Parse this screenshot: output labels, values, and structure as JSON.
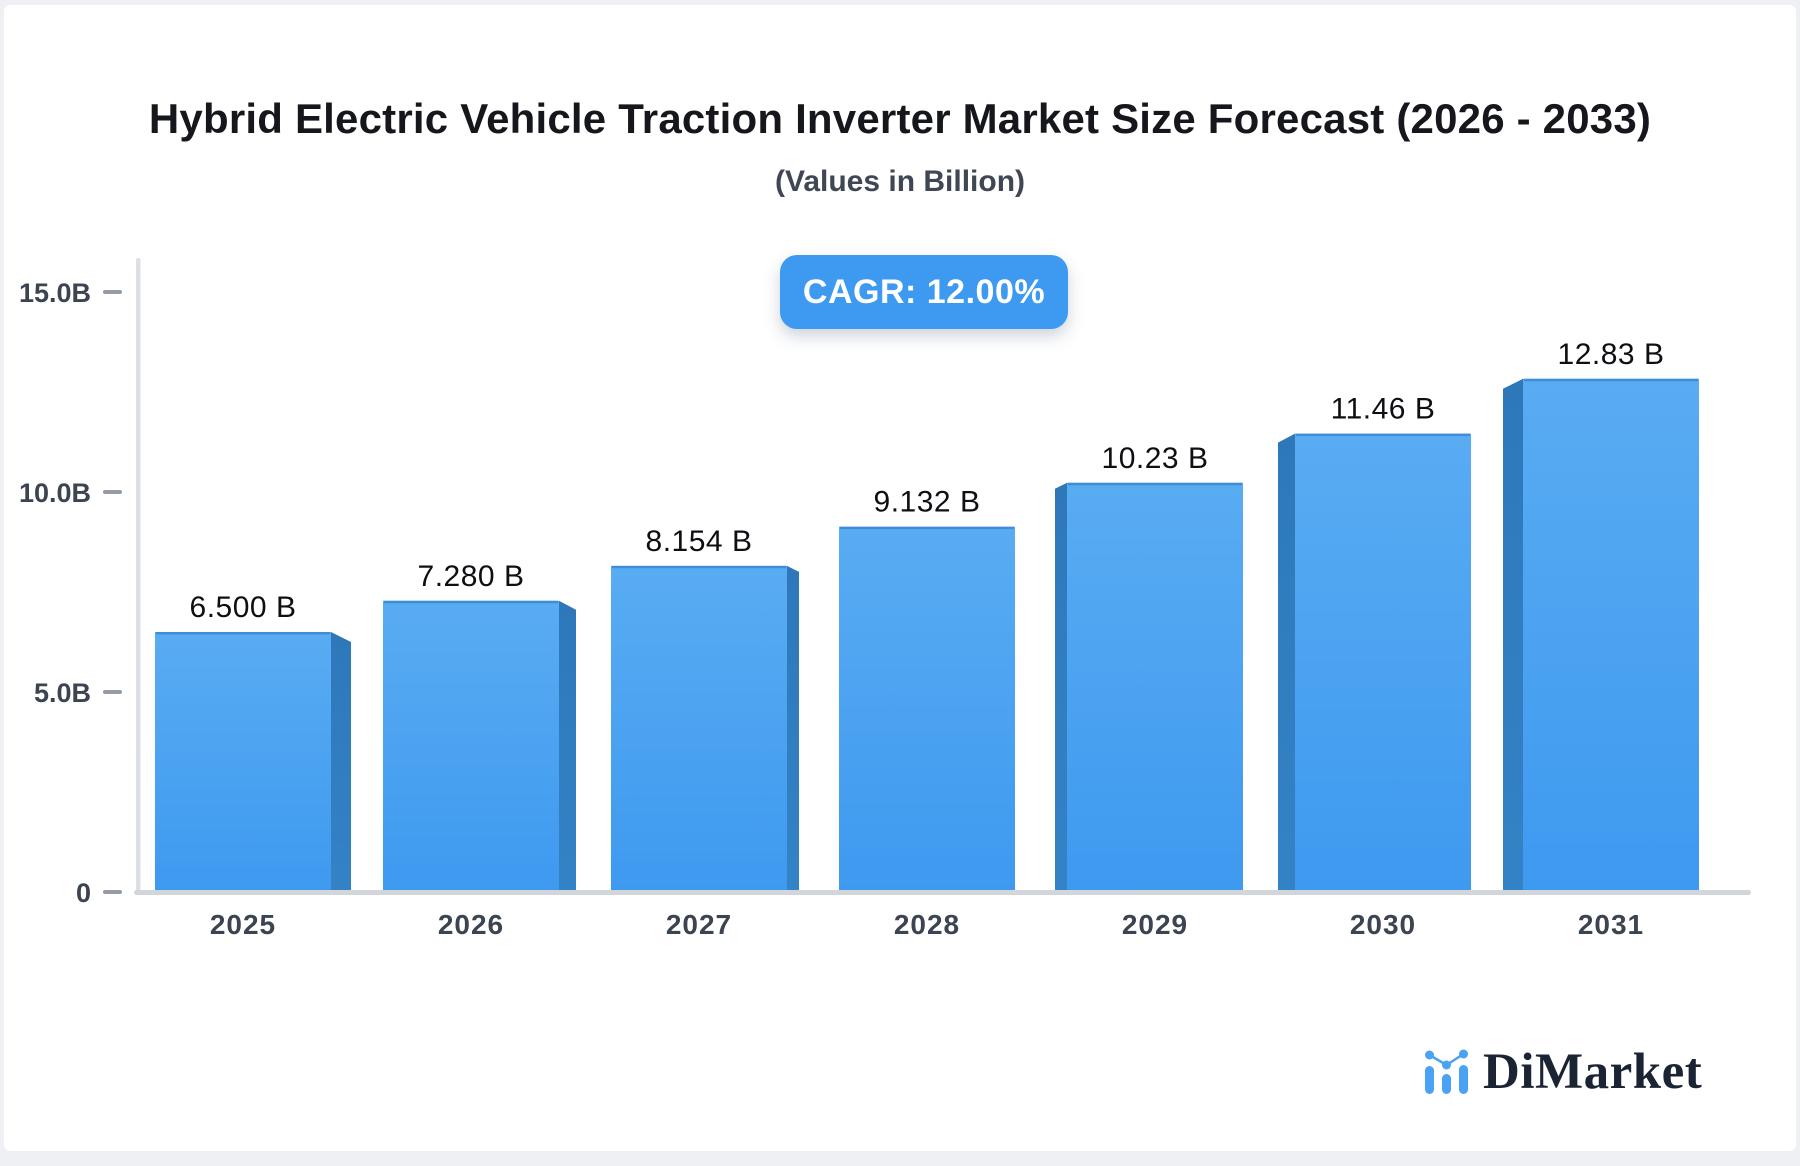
{
  "header": {
    "title": "Hybrid Electric Vehicle Traction Inverter Market Size Forecast (2026 - 2033)",
    "subtitle": "(Values in Billion)",
    "cagr_badge": "CAGR: 12.00%"
  },
  "footer": {
    "brand": "DiMarket"
  },
  "chart_data": {
    "type": "bar",
    "title": "Hybrid Electric Vehicle Traction Inverter Market Size Forecast (2026 - 2033)",
    "subtitle": "(Values in Billion)",
    "categories": [
      "2025",
      "2026",
      "2027",
      "2028",
      "2029",
      "2030",
      "2031"
    ],
    "values": [
      6.5,
      7.28,
      8.154,
      9.132,
      10.23,
      11.46,
      12.83
    ],
    "bar_labels": [
      "6.500 B",
      "7.280 B",
      "8.154 B",
      "9.132 B",
      "10.23 B",
      "11.46 B",
      "12.83 B"
    ],
    "cagr_text": "CAGR: 12.00%",
    "y_ticks": [
      {
        "value": 0,
        "label": "0"
      },
      {
        "value": 5,
        "label": "5.0B"
      },
      {
        "value": 10,
        "label": "10.0B"
      },
      {
        "value": 15,
        "label": "15.0B"
      }
    ],
    "ylim": [
      0,
      15
    ],
    "grid": false,
    "legend": "none",
    "colors": {
      "bar_face_top": "#59acf2",
      "bar_face_bottom": "#3e99f0",
      "bar_top_edge": "#3d87d2",
      "bar_side": "#2e78ba",
      "badge_bg": "#3e9af0",
      "axis_line": "#dcdfe5",
      "baseline": "#d2d6db",
      "tick_dash": "#969ca6",
      "axis_label": "#3c4452",
      "value_label": "#0d0f12",
      "logo_blue": "#4aa2f5",
      "logo_text": "#1b2433"
    }
  }
}
